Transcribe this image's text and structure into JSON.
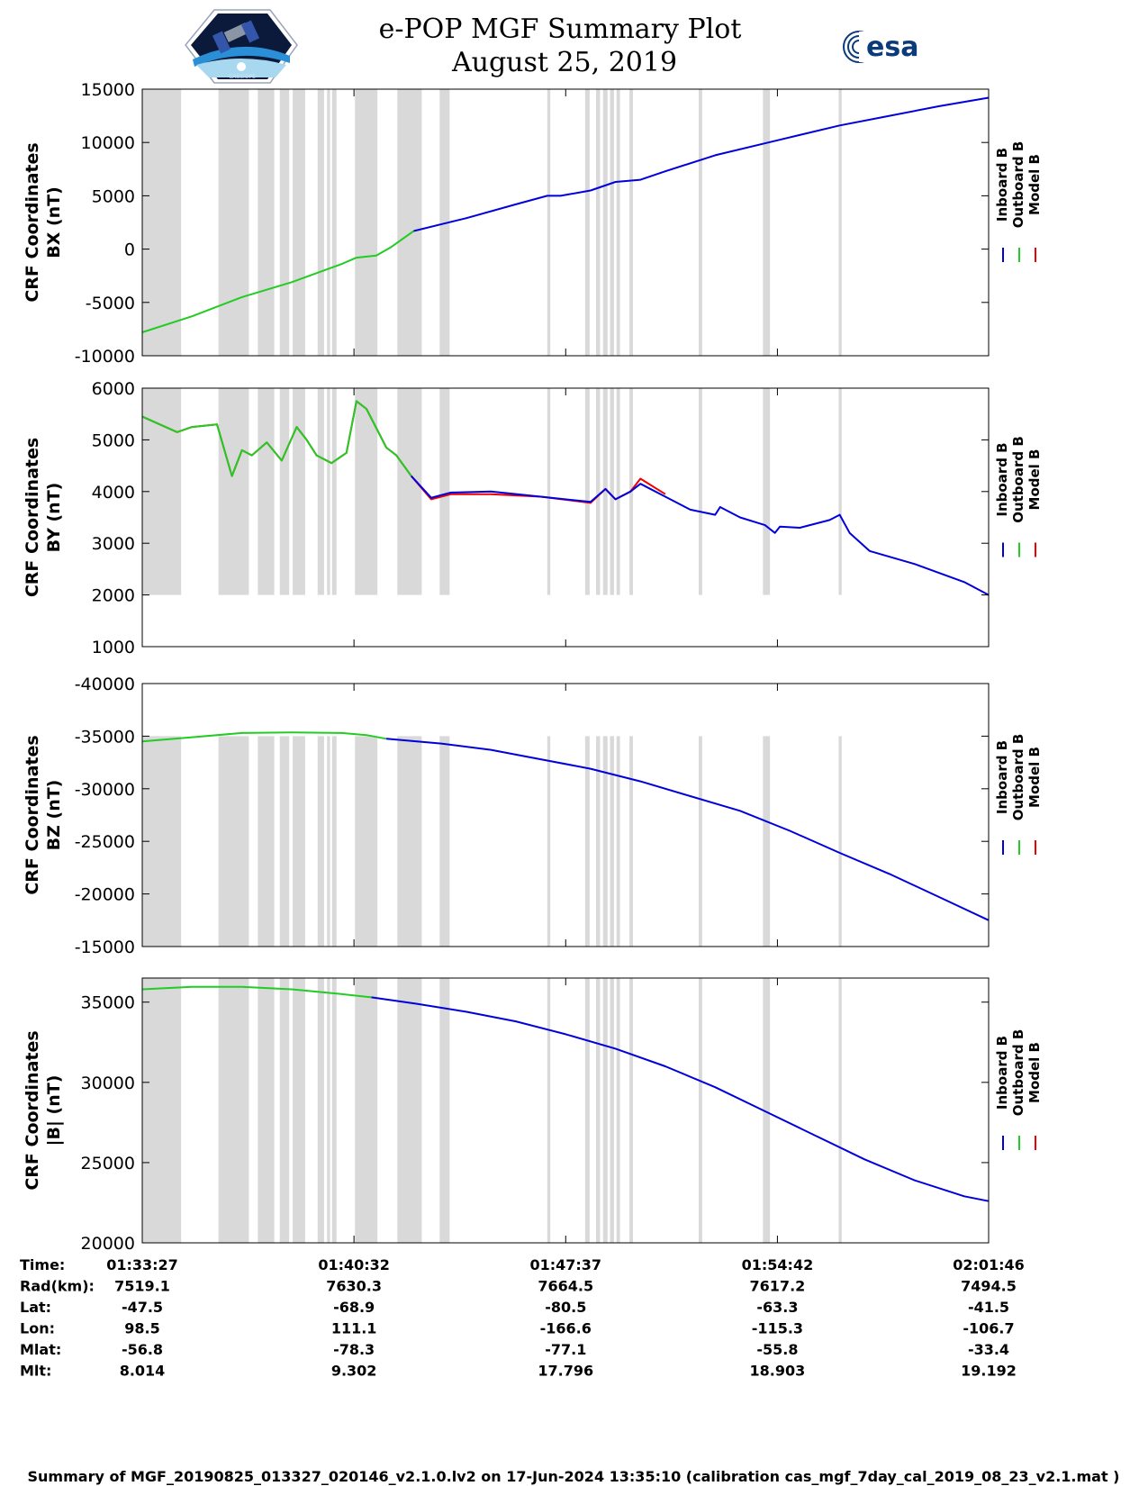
{
  "header": {
    "title": "e-POP MGF Summary Plot",
    "date": "August 25, 2019",
    "left_logo": "cassiope-satellite-logo",
    "right_logo_text": "esa"
  },
  "colors": {
    "inboard": "#0000dd",
    "outboard": "#22cc22",
    "model": "#ee0000",
    "shade": "#d9d9d9"
  },
  "legend": [
    "Inboard B",
    "Outboard B",
    "Model B"
  ],
  "time_axis": {
    "start_sec": 0,
    "end_sec": 1699,
    "ticks": [
      {
        "sec": 0,
        "label": "01:33:27"
      },
      {
        "sec": 425,
        "label": "01:40:32"
      },
      {
        "sec": 850,
        "label": "01:47:37"
      },
      {
        "sec": 1275,
        "label": "01:54:42"
      },
      {
        "sec": 1699,
        "label": "02:01:46"
      }
    ]
  },
  "shaded_intervals_sec": [
    [
      0,
      78
    ],
    [
      153,
      214
    ],
    [
      232,
      265
    ],
    [
      276,
      295
    ],
    [
      302,
      327
    ],
    [
      352,
      365
    ],
    [
      371,
      377
    ],
    [
      381,
      390
    ],
    [
      427,
      472
    ],
    [
      512,
      561
    ],
    [
      597,
      617
    ],
    [
      813,
      819
    ],
    [
      889,
      898
    ],
    [
      911,
      919
    ],
    [
      925,
      934
    ],
    [
      939,
      947
    ],
    [
      952,
      959
    ],
    [
      978,
      985
    ],
    [
      1117,
      1124
    ],
    [
      1246,
      1260
    ],
    [
      1398,
      1404
    ]
  ],
  "chart_data": [
    {
      "type": "line",
      "title": "",
      "ylabel_line1": "CRF Coordinates",
      "ylabel_line2": "BX (nT)",
      "ylim": [
        -10000,
        15000
      ],
      "yticks": [
        {
          "value": 15000,
          "label": "15000"
        },
        {
          "value": 10000,
          "label": "10000"
        },
        {
          "value": 5000,
          "label": "5000"
        },
        {
          "value": 0,
          "label": "0"
        },
        {
          "value": -5000,
          "label": "-5000"
        },
        {
          "value": -10000,
          "label": "-10000"
        }
      ],
      "shade_range": [
        -10000,
        15000
      ],
      "series": [
        {
          "name": "Outboard B",
          "color_key": "outboard",
          "x": [
            0,
            100,
            200,
            300,
            400,
            430,
            470,
            500,
            545
          ],
          "y": [
            -7800,
            -6300,
            -4500,
            -3100,
            -1400,
            -800,
            -600,
            200,
            1700
          ]
        },
        {
          "name": "Inboard B",
          "color_key": "inboard",
          "x": [
            545,
            650,
            750,
            813,
            840,
            900,
            950,
            1000,
            1050,
            1150,
            1275,
            1400,
            1500,
            1600,
            1699
          ],
          "y": [
            1700,
            2900,
            4200,
            5000,
            5000,
            5500,
            6300,
            6500,
            7300,
            8800,
            10200,
            11600,
            12500,
            13400,
            14200
          ]
        }
      ]
    },
    {
      "type": "line",
      "title": "",
      "ylabel_line1": "CRF Coordinates",
      "ylabel_line2": "BY (nT)",
      "ylim": [
        1000,
        6000
      ],
      "yticks": [
        {
          "value": 6000,
          "label": "6000"
        },
        {
          "value": 5000,
          "label": "5000"
        },
        {
          "value": 4000,
          "label": "4000"
        },
        {
          "value": 3000,
          "label": "3000"
        },
        {
          "value": 2000,
          "label": "2000"
        },
        {
          "value": 1000,
          "label": "1000"
        }
      ],
      "shade_range": [
        2000,
        6000
      ],
      "series": [
        {
          "name": "Model B",
          "color_key": "model",
          "x": [
            0,
            70,
            100,
            150,
            180,
            200,
            220,
            250,
            280,
            310,
            330,
            350,
            380,
            410,
            430,
            450,
            490,
            510,
            540,
            580,
            620,
            700,
            800,
            900,
            930,
            950,
            980,
            1000,
            1050
          ],
          "y": [
            5450,
            5150,
            5250,
            5300,
            4300,
            4800,
            4700,
            4950,
            4600,
            5250,
            5000,
            4700,
            4550,
            4750,
            5750,
            5600,
            4850,
            4700,
            4300,
            3850,
            3950,
            3950,
            3900,
            3780,
            4050,
            3850,
            4000,
            4250,
            3950
          ]
        },
        {
          "name": "Outboard B",
          "color_key": "outboard",
          "x": [
            0,
            70,
            100,
            150,
            180,
            200,
            220,
            250,
            280,
            310,
            330,
            350,
            380,
            410,
            430,
            450,
            490,
            510,
            540
          ],
          "y": [
            5450,
            5150,
            5250,
            5300,
            4300,
            4800,
            4700,
            4950,
            4600,
            5250,
            5000,
            4700,
            4550,
            4750,
            5750,
            5600,
            4850,
            4700,
            4300
          ]
        },
        {
          "name": "Inboard B",
          "color_key": "inboard",
          "x": [
            540,
            580,
            620,
            700,
            800,
            900,
            930,
            950,
            980,
            1000,
            1050,
            1100,
            1150,
            1160,
            1200,
            1250,
            1270,
            1280,
            1320,
            1380,
            1400,
            1420,
            1460,
            1550,
            1650,
            1699
          ],
          "y": [
            4300,
            3880,
            3980,
            4000,
            3900,
            3800,
            4050,
            3850,
            4000,
            4150,
            3900,
            3650,
            3550,
            3700,
            3500,
            3350,
            3200,
            3320,
            3300,
            3450,
            3550,
            3200,
            2850,
            2600,
            2250,
            2000
          ]
        }
      ]
    },
    {
      "type": "line",
      "title": "",
      "ylabel_line1": "CRF Coordinates",
      "ylabel_line2": "BZ (nT)",
      "ylim": [
        -40000,
        -15000
      ],
      "y_reversed": true,
      "yticks": [
        {
          "value": -15000,
          "label": "-15000"
        },
        {
          "value": -20000,
          "label": "-20000"
        },
        {
          "value": -25000,
          "label": "-25000"
        },
        {
          "value": -30000,
          "label": "-30000"
        },
        {
          "value": -35000,
          "label": "-35000"
        },
        {
          "value": -40000,
          "label": "-40000"
        }
      ],
      "shade_range": [
        -35000,
        -15000
      ],
      "series": [
        {
          "name": "Outboard B",
          "color_key": "outboard",
          "x": [
            0,
            100,
            200,
            300,
            400,
            450,
            490
          ],
          "y": [
            -34500,
            -34900,
            -35300,
            -35350,
            -35300,
            -35100,
            -34750
          ]
        },
        {
          "name": "Inboard B",
          "color_key": "inboard",
          "x": [
            490,
            600,
            700,
            800,
            900,
            1000,
            1100,
            1200,
            1300,
            1400,
            1500,
            1600,
            1699
          ],
          "y": [
            -34750,
            -34300,
            -33700,
            -32800,
            -31900,
            -30700,
            -29300,
            -27900,
            -26000,
            -23900,
            -21900,
            -19700,
            -17500
          ]
        }
      ]
    },
    {
      "type": "line",
      "title": "",
      "ylabel_line1": "CRF Coordinates",
      "ylabel_line2": "|B| (nT)",
      "ylim": [
        20000,
        36500
      ],
      "yticks": [
        {
          "value": 35000,
          "label": "35000"
        },
        {
          "value": 30000,
          "label": "30000"
        },
        {
          "value": 25000,
          "label": "25000"
        },
        {
          "value": 20000,
          "label": "20000"
        }
      ],
      "shade_range": [
        20000,
        36500
      ],
      "series": [
        {
          "name": "Outboard B",
          "color_key": "outboard",
          "x": [
            0,
            100,
            200,
            300,
            400,
            460
          ],
          "y": [
            35800,
            35950,
            35950,
            35800,
            35500,
            35300
          ]
        },
        {
          "name": "Inboard B",
          "color_key": "inboard",
          "x": [
            460,
            550,
            650,
            750,
            850,
            950,
            1050,
            1150,
            1250,
            1350,
            1450,
            1550,
            1650,
            1699
          ],
          "y": [
            35300,
            34900,
            34400,
            33800,
            33000,
            32100,
            31000,
            29700,
            28200,
            26700,
            25200,
            23900,
            22900,
            22600
          ]
        }
      ]
    }
  ],
  "orbit_table": {
    "row_labels": [
      "Time:",
      "Rad(km):",
      "Lat:",
      "Lon:",
      "Mlat:",
      "Mlt:"
    ],
    "columns": [
      [
        "01:33:27",
        "7519.1",
        "-47.5",
        "98.5",
        "-56.8",
        "8.014"
      ],
      [
        "01:40:32",
        "7630.3",
        "-68.9",
        "111.1",
        "-78.3",
        "9.302"
      ],
      [
        "01:47:37",
        "7664.5",
        "-80.5",
        "-166.6",
        "-77.1",
        "17.796"
      ],
      [
        "01:54:42",
        "7617.2",
        "-63.3",
        "-115.3",
        "-55.8",
        "18.903"
      ],
      [
        "02:01:46",
        "7494.5",
        "-41.5",
        "-106.7",
        "-33.4",
        "19.192"
      ]
    ]
  },
  "footer": "Summary of MGF_20190825_013327_020146_v2.1.0.lv2 on 17-Jun-2024 13:35:10 (calibration cas_mgf_7day_cal_2019_08_23_v2.1.mat )"
}
